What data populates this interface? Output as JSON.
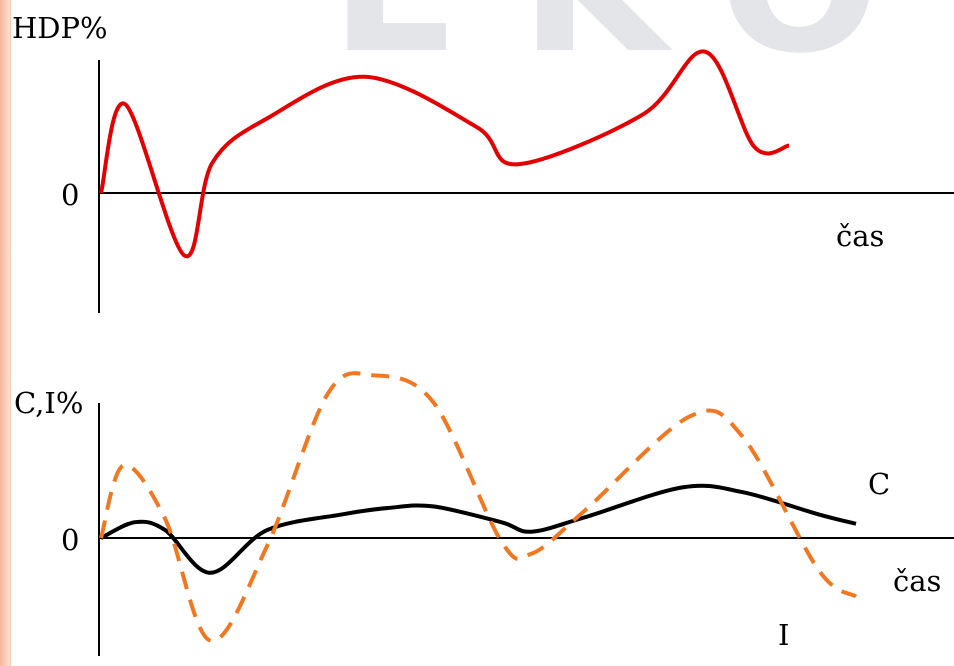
{
  "watermark_text": "EKO",
  "colors": {
    "hdp": "#e30000",
    "consumption": "#000000",
    "investment": "#f07820",
    "watermark": "#e4e5e8",
    "axis": "#000000"
  },
  "chart_data": [
    {
      "type": "line",
      "ylabel": "HDP%",
      "xlabel": "čas",
      "zero_label": "0",
      "grid": false,
      "units": "relative",
      "series": [
        {
          "style": "solid",
          "points": [
            [
              0,
              0
            ],
            [
              0.035,
              0.71
            ],
            [
              0.12,
              -0.5
            ],
            [
              0.16,
              0.24
            ],
            [
              0.24,
              0.6
            ],
            [
              0.38,
              0.93
            ],
            [
              0.54,
              0.53
            ],
            [
              0.6,
              0.23
            ],
            [
              0.78,
              0.63
            ],
            [
              0.87,
              1.13
            ],
            [
              0.94,
              0.37
            ],
            [
              0.99,
              0.38
            ]
          ]
        }
      ]
    },
    {
      "type": "line",
      "ylabel": "C,I%",
      "xlabel": "čas",
      "zero_label": "0",
      "grid": false,
      "units": "relative",
      "series": [
        {
          "name": "C",
          "style": "solid",
          "points": [
            [
              0,
              0
            ],
            [
              0.045,
              0.1
            ],
            [
              0.085,
              0.05
            ],
            [
              0.145,
              -0.22
            ],
            [
              0.22,
              0.05
            ],
            [
              0.32,
              0.15
            ],
            [
              0.38,
              0.19
            ],
            [
              0.44,
              0.2
            ],
            [
              0.53,
              0.1
            ],
            [
              0.57,
              0.04
            ],
            [
              0.64,
              0.13
            ],
            [
              0.77,
              0.32
            ],
            [
              0.85,
              0.29
            ],
            [
              0.95,
              0.15
            ],
            [
              1.0,
              0.09
            ]
          ]
        },
        {
          "name": "I",
          "style": "dashed",
          "points": [
            [
              0,
              0
            ],
            [
              0.03,
              0.46
            ],
            [
              0.085,
              0.12
            ],
            [
              0.145,
              -0.65
            ],
            [
              0.22,
              -0.05
            ],
            [
              0.3,
              0.91
            ],
            [
              0.36,
              1.03
            ],
            [
              0.44,
              0.86
            ],
            [
              0.53,
              -0.02
            ],
            [
              0.57,
              -0.1
            ],
            [
              0.64,
              0.17
            ],
            [
              0.78,
              0.77
            ],
            [
              0.85,
              0.64
            ],
            [
              0.95,
              -0.2
            ],
            [
              1.0,
              -0.37
            ]
          ]
        }
      ]
    }
  ]
}
